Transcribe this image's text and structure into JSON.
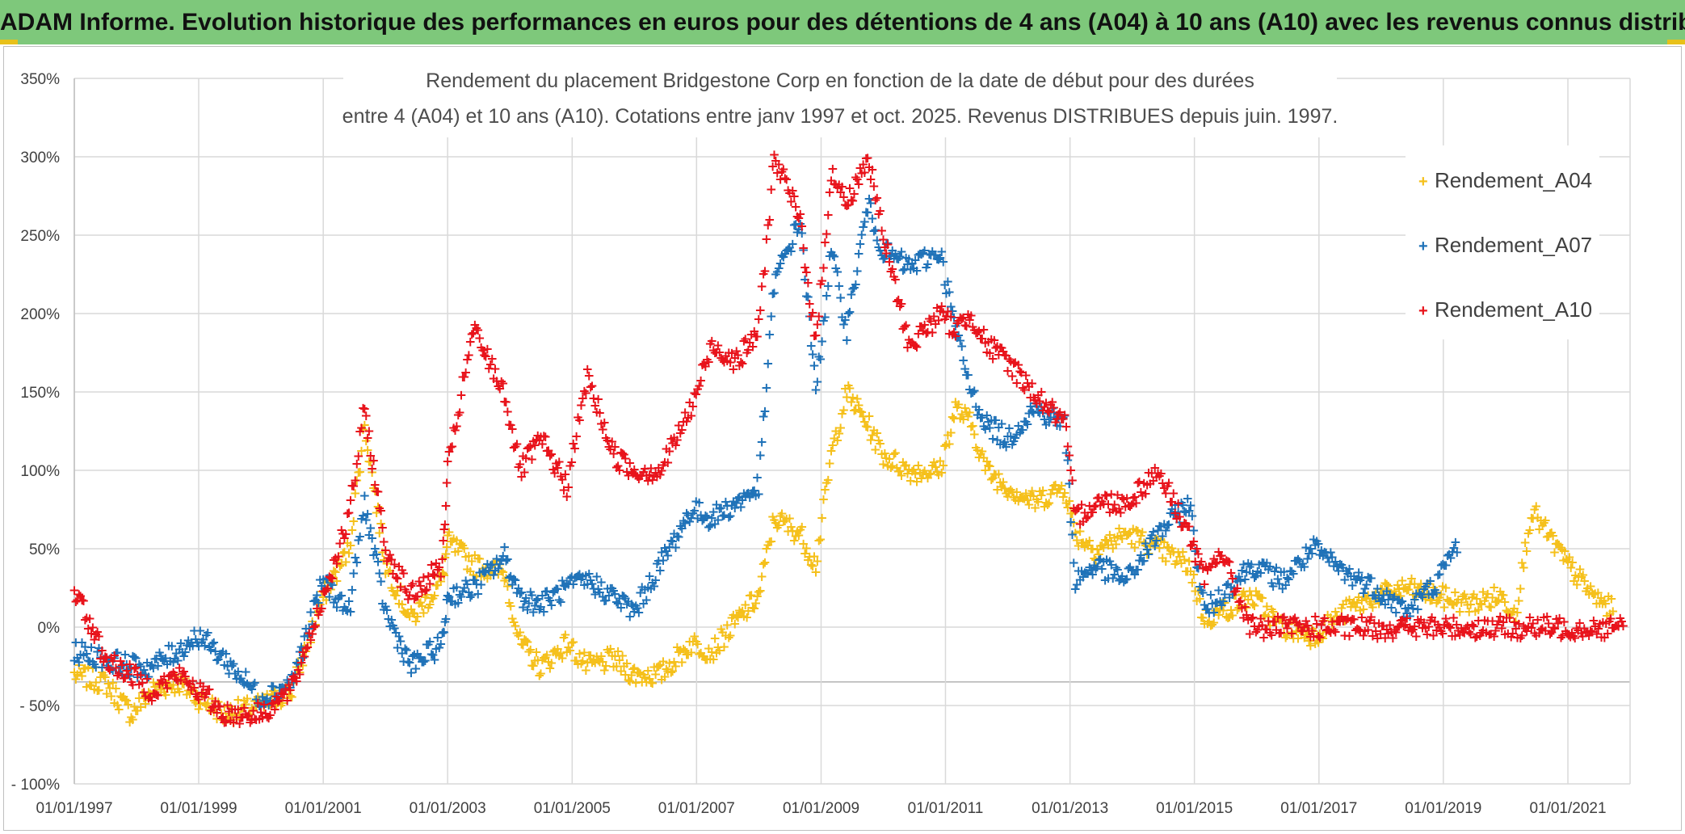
{
  "header": {
    "title": "ADAM Informe. Evolution historique des performances en euros pour des détentions de 4 ans (A04) à 10 ans (A10) avec les revenus connus distribués"
  },
  "colors": {
    "banner": "#7ec87b",
    "A04": "#f5c01b",
    "A07": "#1f72b8",
    "A10": "#e8131b",
    "grid": "#d9d9d9"
  },
  "chart_data": {
    "type": "scatter",
    "title_lines": [
      "Rendement du placement Bridgestone Corp en fonction de la date de début pour des durées",
      "entre 4 (A04) et 10 ans (A10). Cotations entre janv 1997 et oct. 2025. Revenus DISTRIBUES depuis juin. 1997."
    ],
    "x_tick_labels": [
      "01/01/1997",
      "01/01/1999",
      "01/01/2001",
      "01/01/2003",
      "01/01/2005",
      "01/01/2007",
      "01/01/2009",
      "01/01/2011",
      "01/01/2013",
      "01/01/2015",
      "01/01/2017",
      "01/01/2019",
      "01/01/2021"
    ],
    "y_tick_labels": [
      "350%",
      "300%",
      "250%",
      "200%",
      "150%",
      "100%",
      "50%",
      "0%",
      "- 50%",
      "- 100%"
    ],
    "xlim": [
      "1997-01-01",
      "2022-01-01"
    ],
    "ylim": [
      -100,
      350
    ],
    "y_unit": "%",
    "grid": true,
    "legend_position": "top-right",
    "series": [
      {
        "name": "Rendement_A04",
        "color": "#f5c01b",
        "points": [
          [
            "1997-01-01",
            -30
          ],
          [
            "1997-07-01",
            -35
          ],
          [
            "1997-12-01",
            -55
          ],
          [
            "1998-04-01",
            -40
          ],
          [
            "1998-09-01",
            -35
          ],
          [
            "1999-01-01",
            -45
          ],
          [
            "1999-06-01",
            -55
          ],
          [
            "2000-01-01",
            -50
          ],
          [
            "2000-07-01",
            -40
          ],
          [
            "2001-01-01",
            20
          ],
          [
            "2001-06-01",
            50
          ],
          [
            "2001-09-01",
            130
          ],
          [
            "2002-01-01",
            40
          ],
          [
            "2002-06-01",
            5
          ],
          [
            "2002-12-01",
            30
          ],
          [
            "2003-01-01",
            55
          ],
          [
            "2003-06-01",
            40
          ],
          [
            "2003-12-01",
            35
          ],
          [
            "2004-03-01",
            -10
          ],
          [
            "2004-07-01",
            -25
          ],
          [
            "2004-12-01",
            -10
          ],
          [
            "2005-04-01",
            -25
          ],
          [
            "2005-09-01",
            -20
          ],
          [
            "2006-01-01",
            -30
          ],
          [
            "2006-06-01",
            -30
          ],
          [
            "2006-12-01",
            -10
          ],
          [
            "2007-04-01",
            -15
          ],
          [
            "2007-09-01",
            5
          ],
          [
            "2008-01-01",
            20
          ],
          [
            "2008-04-01",
            70
          ],
          [
            "2008-09-01",
            60
          ],
          [
            "2008-12-01",
            40
          ],
          [
            "2009-03-01",
            110
          ],
          [
            "2009-06-01",
            150
          ],
          [
            "2009-10-01",
            130
          ],
          [
            "2010-01-01",
            110
          ],
          [
            "2010-06-01",
            100
          ],
          [
            "2010-12-01",
            100
          ],
          [
            "2011-03-01",
            140
          ],
          [
            "2011-06-01",
            130
          ],
          [
            "2011-09-01",
            100
          ],
          [
            "2012-01-01",
            90
          ],
          [
            "2012-06-01",
            80
          ],
          [
            "2012-12-01",
            90
          ],
          [
            "2013-02-01",
            60
          ],
          [
            "2013-06-01",
            50
          ],
          [
            "2013-12-01",
            60
          ],
          [
            "2014-06-01",
            50
          ],
          [
            "2014-12-01",
            40
          ],
          [
            "2015-03-01",
            5
          ],
          [
            "2015-06-01",
            10
          ],
          [
            "2015-12-01",
            20
          ],
          [
            "2016-06-01",
            0
          ],
          [
            "2016-12-01",
            -5
          ],
          [
            "2017-06-01",
            10
          ],
          [
            "2017-12-01",
            20
          ],
          [
            "2018-06-01",
            25
          ],
          [
            "2018-12-01",
            20
          ],
          [
            "2019-06-01",
            15
          ],
          [
            "2019-12-01",
            20
          ],
          [
            "2020-03-01",
            10
          ],
          [
            "2020-06-01",
            75
          ],
          [
            "2020-09-01",
            60
          ],
          [
            "2021-01-01",
            40
          ],
          [
            "2021-06-01",
            20
          ],
          [
            "2021-10-01",
            10
          ]
        ]
      },
      {
        "name": "Rendement_A07",
        "color": "#1f72b8",
        "points": [
          [
            "1997-01-01",
            -15
          ],
          [
            "1997-07-01",
            -20
          ],
          [
            "1997-12-01",
            -25
          ],
          [
            "1998-04-01",
            -25
          ],
          [
            "1998-09-01",
            -15
          ],
          [
            "1999-01-01",
            -5
          ],
          [
            "1999-06-01",
            -20
          ],
          [
            "2000-01-01",
            -45
          ],
          [
            "2000-07-01",
            -35
          ],
          [
            "2001-01-01",
            30
          ],
          [
            "2001-06-01",
            10
          ],
          [
            "2001-09-01",
            80
          ],
          [
            "2002-01-01",
            10
          ],
          [
            "2002-06-01",
            -25
          ],
          [
            "2002-12-01",
            -10
          ],
          [
            "2003-01-01",
            20
          ],
          [
            "2003-06-01",
            25
          ],
          [
            "2003-12-01",
            45
          ],
          [
            "2004-03-01",
            20
          ],
          [
            "2004-07-01",
            15
          ],
          [
            "2004-12-01",
            25
          ],
          [
            "2005-04-01",
            30
          ],
          [
            "2005-09-01",
            20
          ],
          [
            "2006-01-01",
            10
          ],
          [
            "2006-06-01",
            40
          ],
          [
            "2006-12-01",
            75
          ],
          [
            "2007-04-01",
            70
          ],
          [
            "2007-09-01",
            80
          ],
          [
            "2008-01-01",
            90
          ],
          [
            "2008-04-01",
            220
          ],
          [
            "2008-09-01",
            260
          ],
          [
            "2008-12-01",
            150
          ],
          [
            "2009-03-01",
            240
          ],
          [
            "2009-06-01",
            190
          ],
          [
            "2009-10-01",
            270
          ],
          [
            "2010-01-01",
            240
          ],
          [
            "2010-06-01",
            230
          ],
          [
            "2010-12-01",
            240
          ],
          [
            "2011-03-01",
            190
          ],
          [
            "2011-06-01",
            150
          ],
          [
            "2011-09-01",
            130
          ],
          [
            "2012-01-01",
            120
          ],
          [
            "2012-06-01",
            140
          ],
          [
            "2012-12-01",
            130
          ],
          [
            "2013-02-01",
            30
          ],
          [
            "2013-06-01",
            40
          ],
          [
            "2013-12-01",
            30
          ],
          [
            "2014-06-01",
            60
          ],
          [
            "2014-12-01",
            80
          ],
          [
            "2015-03-01",
            10
          ],
          [
            "2015-06-01",
            20
          ],
          [
            "2015-12-01",
            40
          ],
          [
            "2016-06-01",
            30
          ],
          [
            "2016-12-01",
            50
          ],
          [
            "2017-06-01",
            35
          ],
          [
            "2017-12-01",
            25
          ],
          [
            "2018-06-01",
            10
          ],
          [
            "2018-12-01",
            30
          ],
          [
            "2019-04-01",
            55
          ]
        ]
      },
      {
        "name": "Rendement_A10",
        "color": "#e8131b",
        "points": [
          [
            "1997-01-01",
            25
          ],
          [
            "1997-07-01",
            -20
          ],
          [
            "1997-12-01",
            -30
          ],
          [
            "1998-04-01",
            -40
          ],
          [
            "1998-09-01",
            -30
          ],
          [
            "1999-01-01",
            -40
          ],
          [
            "1999-06-01",
            -55
          ],
          [
            "2000-01-01",
            -55
          ],
          [
            "2000-07-01",
            -40
          ],
          [
            "2001-01-01",
            20
          ],
          [
            "2001-06-01",
            70
          ],
          [
            "2001-09-01",
            140
          ],
          [
            "2002-01-01",
            50
          ],
          [
            "2002-06-01",
            20
          ],
          [
            "2002-12-01",
            40
          ],
          [
            "2003-01-01",
            100
          ],
          [
            "2003-06-01",
            190
          ],
          [
            "2003-12-01",
            150
          ],
          [
            "2004-03-01",
            100
          ],
          [
            "2004-07-01",
            120
          ],
          [
            "2004-12-01",
            90
          ],
          [
            "2005-04-01",
            160
          ],
          [
            "2005-09-01",
            110
          ],
          [
            "2006-01-01",
            100
          ],
          [
            "2006-06-01",
            100
          ],
          [
            "2006-12-01",
            140
          ],
          [
            "2007-04-01",
            180
          ],
          [
            "2007-09-01",
            170
          ],
          [
            "2008-01-01",
            190
          ],
          [
            "2008-04-01",
            300
          ],
          [
            "2008-09-01",
            260
          ],
          [
            "2008-12-01",
            180
          ],
          [
            "2009-03-01",
            290
          ],
          [
            "2009-06-01",
            270
          ],
          [
            "2009-10-01",
            300
          ],
          [
            "2010-01-01",
            250
          ],
          [
            "2010-06-01",
            180
          ],
          [
            "2010-12-01",
            200
          ],
          [
            "2011-03-01",
            190
          ],
          [
            "2011-06-01",
            200
          ],
          [
            "2011-09-01",
            180
          ],
          [
            "2012-01-01",
            170
          ],
          [
            "2012-06-01",
            150
          ],
          [
            "2012-12-01",
            130
          ],
          [
            "2013-02-01",
            70
          ],
          [
            "2013-06-01",
            80
          ],
          [
            "2013-12-01",
            80
          ],
          [
            "2014-06-01",
            100
          ],
          [
            "2014-12-01",
            60
          ],
          [
            "2015-03-01",
            30
          ],
          [
            "2015-06-01",
            50
          ],
          [
            "2015-12-01",
            0
          ],
          [
            "2016-06-01",
            0
          ],
          [
            "2016-12-01",
            0
          ],
          [
            "2017-06-01",
            0
          ],
          [
            "2017-12-01",
            0
          ],
          [
            "2018-06-01",
            0
          ],
          [
            "2018-12-01",
            0
          ],
          [
            "2019-06-01",
            0
          ],
          [
            "2019-12-01",
            0
          ],
          [
            "2020-06-01",
            0
          ],
          [
            "2020-12-01",
            0
          ],
          [
            "2021-06-01",
            0
          ],
          [
            "2021-12-01",
            0
          ]
        ]
      }
    ]
  }
}
